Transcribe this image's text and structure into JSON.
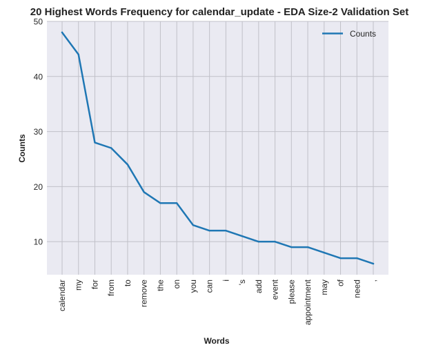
{
  "chart_data": {
    "type": "line",
    "title": "20 Highest Words Frequency for calendar_update - EDA Size-2 Validation Set",
    "xlabel": "Words",
    "ylabel": "Counts",
    "categories": [
      "calendar",
      "my",
      "for",
      "from",
      "to",
      "remove",
      "the",
      "on",
      "you",
      "can",
      "i",
      "'s",
      "add",
      "event",
      "please",
      "appointment",
      "may",
      "of",
      "need",
      ","
    ],
    "series": [
      {
        "name": "Counts",
        "values": [
          48,
          44,
          28,
          27,
          24,
          19,
          17,
          17,
          13,
          12,
          12,
          11,
          10,
          10,
          9,
          9,
          8,
          7,
          7,
          6
        ]
      }
    ],
    "yticks": [
      10,
      20,
      30,
      40,
      50
    ],
    "ylim": [
      4,
      50
    ],
    "grid": true,
    "legend": "top-right",
    "colors": {
      "line": "#1f77b4",
      "plot_bg": "#eaeaf2",
      "grid": "#c0c0c8"
    }
  }
}
